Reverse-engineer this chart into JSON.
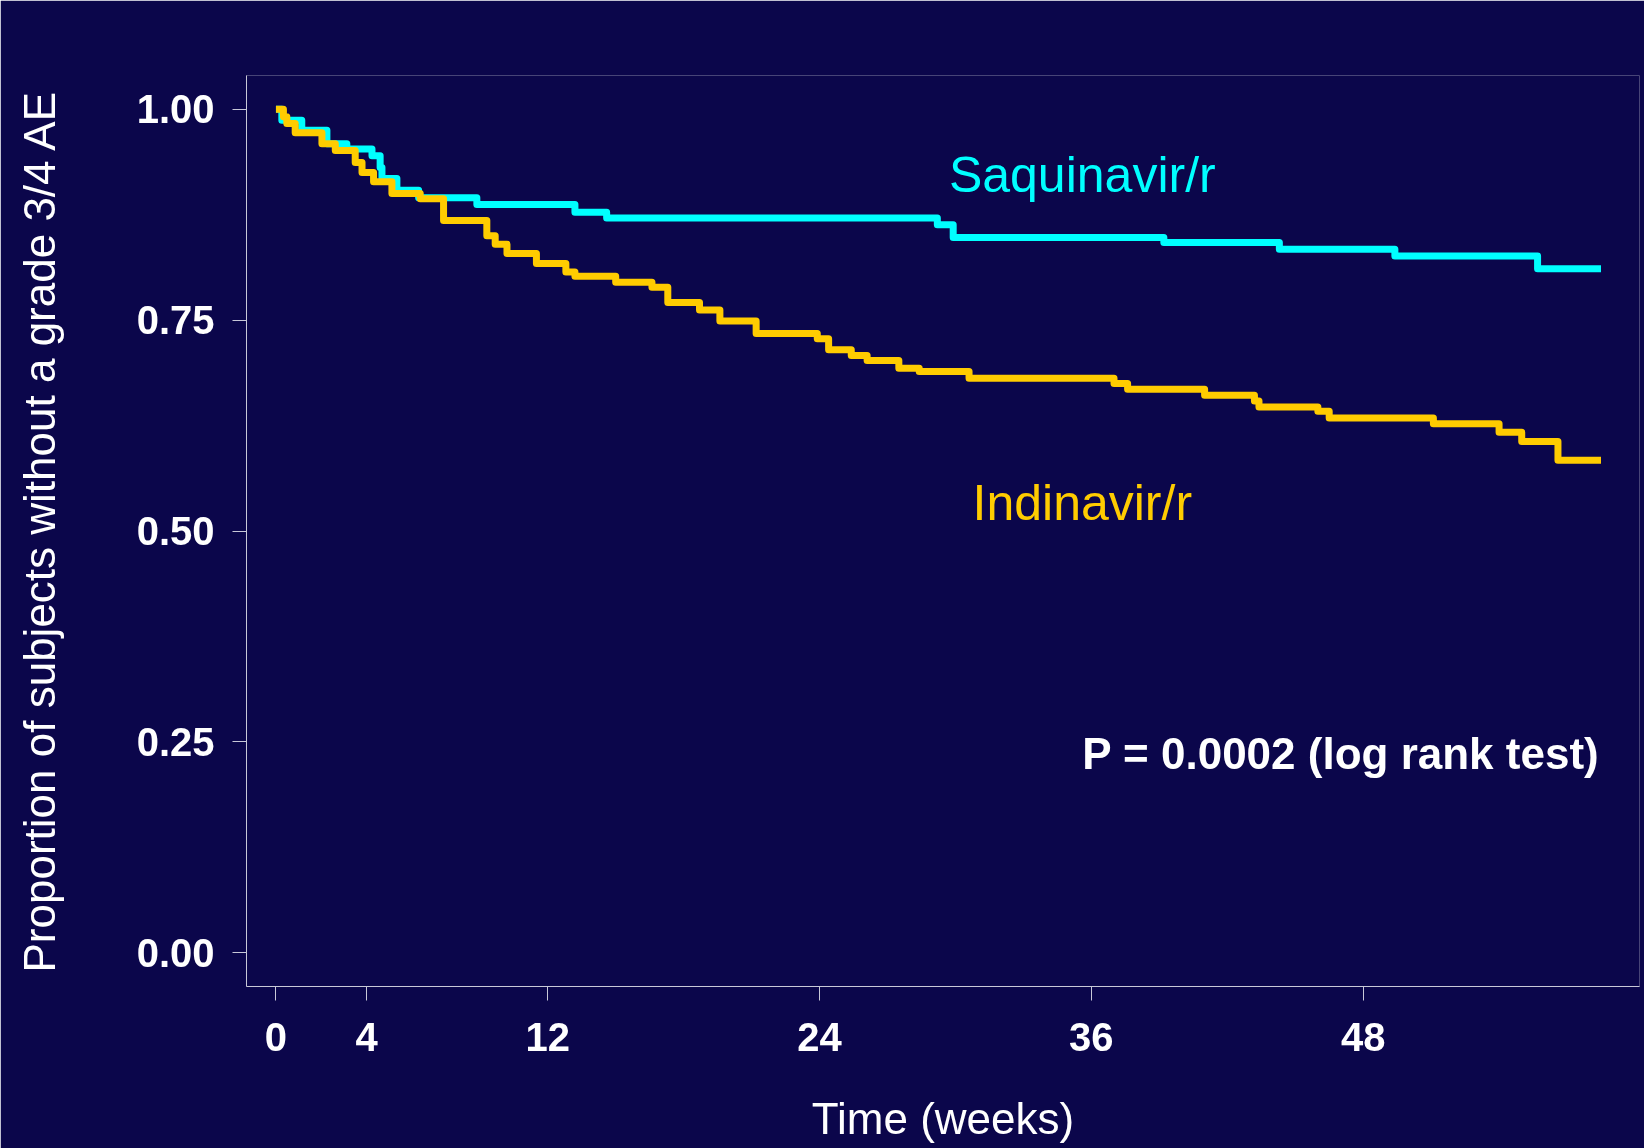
{
  "chart_data": {
    "type": "step",
    "xlabel": "Time (weeks)",
    "ylabel": "Proportion of subjects without a grade 3/4 AE",
    "xlim": [
      -1.3,
      60.2
    ],
    "ylim": [
      -0.04,
      1.04
    ],
    "xticks": [
      0,
      4,
      12,
      24,
      36,
      48
    ],
    "yticks": [
      {
        "value": 0,
        "label": "0.00"
      },
      {
        "value": 0.25,
        "label": "0.25"
      },
      {
        "value": 0.5,
        "label": "0.50"
      },
      {
        "value": 0.75,
        "label": "0.75"
      },
      {
        "value": 1,
        "label": "1.00"
      }
    ],
    "grid": false,
    "marker": "none",
    "line_style": "solid",
    "series": [
      {
        "name": "Saquinavir/r",
        "color": "#00ffff",
        "x": [
          0,
          0.26,
          1.14,
          2.25,
          3.13,
          4.24,
          4.6,
          4.68,
          5.34,
          6.3,
          8.87,
          13.2,
          14.6,
          29.2,
          29.9,
          39.2,
          44.3,
          49.4,
          55.7,
          58.5
        ],
        "values": [
          1.0,
          0.987,
          0.975,
          0.959,
          0.953,
          0.945,
          0.931,
          0.918,
          0.904,
          0.895,
          0.887,
          0.878,
          0.871,
          0.863,
          0.848,
          0.842,
          0.834,
          0.826,
          0.811,
          0.811
        ]
      },
      {
        "name": "Indinavir/r",
        "color": "#ffcc00",
        "x": [
          0,
          0.33,
          0.48,
          0.85,
          2.03,
          2.62,
          3.5,
          3.8,
          4.31,
          5.12,
          6.37,
          7.4,
          9.31,
          9.68,
          10.2,
          11.5,
          12.8,
          13.2,
          15.0,
          16.6,
          17.3,
          18.7,
          19.6,
          21.2,
          23.9,
          24.4,
          25.4,
          26.1,
          27.5,
          28.4,
          30.6,
          37.0,
          37.6,
          41.0,
          43.2,
          43.4,
          46.0,
          46.5,
          51.1,
          54.0,
          55.0,
          56.6,
          58.5
        ],
        "values": [
          1.0,
          0.991,
          0.983,
          0.972,
          0.959,
          0.951,
          0.937,
          0.925,
          0.914,
          0.9,
          0.894,
          0.868,
          0.85,
          0.84,
          0.829,
          0.817,
          0.807,
          0.802,
          0.795,
          0.789,
          0.771,
          0.762,
          0.749,
          0.734,
          0.728,
          0.715,
          0.708,
          0.702,
          0.693,
          0.689,
          0.681,
          0.675,
          0.668,
          0.661,
          0.654,
          0.647,
          0.642,
          0.634,
          0.627,
          0.617,
          0.606,
          0.584,
          0.584
        ]
      }
    ],
    "annotations": [
      "P = 0.0002 (log rank test)"
    ]
  }
}
